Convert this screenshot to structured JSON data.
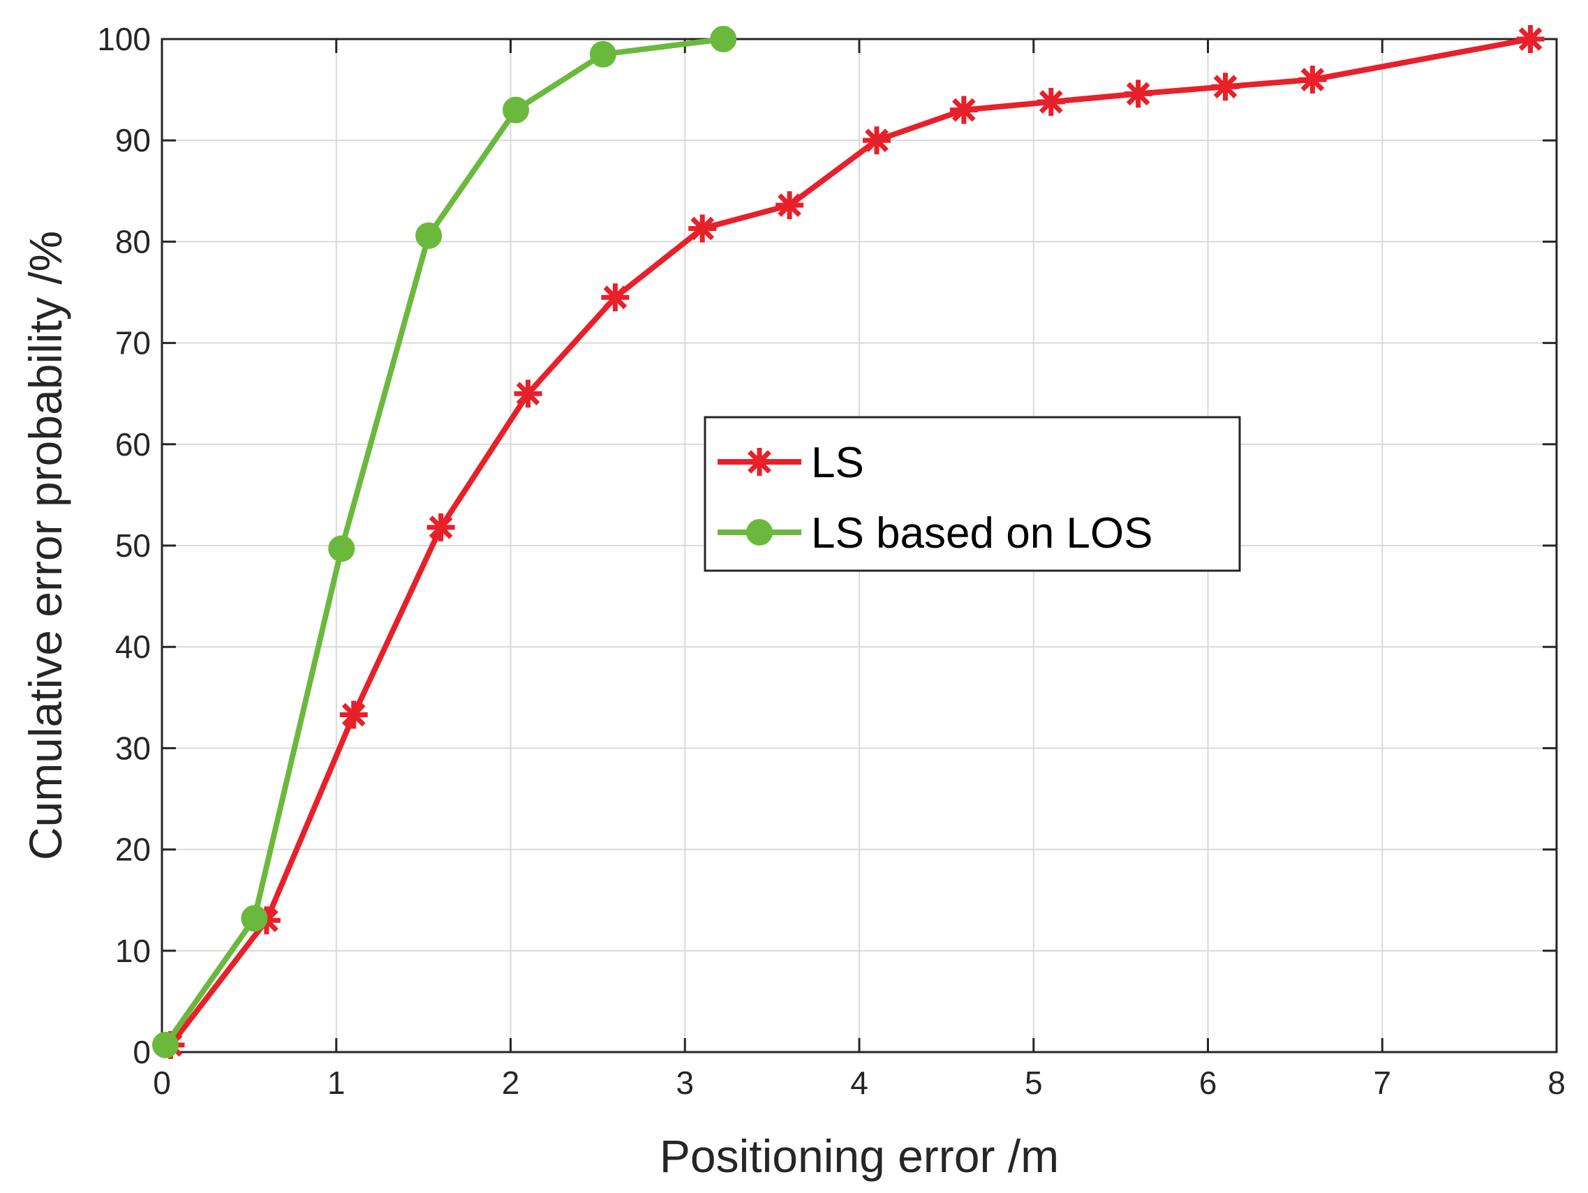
{
  "chart_data": {
    "type": "line",
    "xlabel": "Positioning error /m",
    "ylabel": "Cumulative error probability /%",
    "xlim": [
      0,
      8
    ],
    "ylim": [
      0,
      100
    ],
    "xticks": [
      0,
      1,
      2,
      3,
      4,
      5,
      6,
      7,
      8
    ],
    "yticks": [
      0,
      10,
      20,
      30,
      40,
      50,
      60,
      70,
      80,
      90,
      100
    ],
    "xtick_labels": [
      "0",
      "1",
      "2",
      "3",
      "4",
      "5",
      "6",
      "7",
      "8"
    ],
    "ytick_labels": [
      "0",
      "10",
      "20",
      "30",
      "40",
      "50",
      "60",
      "70",
      "80",
      "90",
      "100"
    ],
    "grid": true,
    "legend_position": "center-right",
    "series": [
      {
        "name": "LS",
        "color": "#e8202a",
        "marker": "asterisk",
        "x": [
          0.05,
          0.6,
          1.1,
          1.6,
          2.1,
          2.6,
          3.1,
          3.6,
          4.1,
          4.6,
          5.1,
          5.6,
          6.1,
          6.6,
          7.85
        ],
        "y": [
          0.7,
          13.0,
          33.3,
          51.8,
          65.0,
          74.5,
          81.3,
          83.6,
          90.0,
          93.0,
          93.8,
          94.6,
          95.3,
          96.0,
          100.0
        ]
      },
      {
        "name": "LS based on LOS",
        "color": "#6ab93c",
        "marker": "circle",
        "x": [
          0.02,
          0.53,
          1.03,
          1.53,
          2.03,
          2.53,
          3.22
        ],
        "y": [
          0.7,
          13.2,
          49.7,
          80.6,
          93.0,
          98.5,
          100.0
        ]
      }
    ]
  }
}
